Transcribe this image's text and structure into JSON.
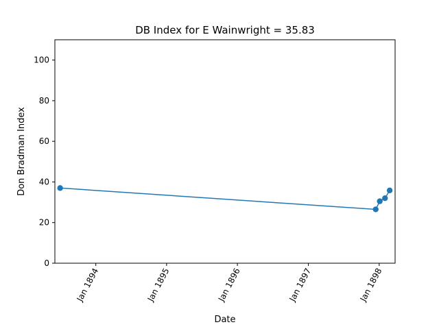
{
  "chart_data": {
    "type": "line",
    "title": "DB Index for E Wainwright = 35.83",
    "xlabel": "Date",
    "ylabel": "Don Bradman Index",
    "ylim": [
      0,
      110
    ],
    "xlim": [
      "1893-06-04",
      "1898-03-24"
    ],
    "x_ticks": [
      {
        "date": "1894-01-01",
        "label": "Jan 1894"
      },
      {
        "date": "1895-01-01",
        "label": "Jan 1895"
      },
      {
        "date": "1896-01-01",
        "label": "Jan 1896"
      },
      {
        "date": "1897-01-01",
        "label": "Jan 1897"
      },
      {
        "date": "1898-01-01",
        "label": "Jan 1898"
      }
    ],
    "y_ticks": [
      0,
      20,
      40,
      60,
      80,
      100
    ],
    "grid": false,
    "series": [
      {
        "color": "#1f77b4",
        "marker": "circle",
        "points": [
          {
            "x": "1893-07-01",
            "y": 37.0
          },
          {
            "x": "1897-12-14",
            "y": 26.5
          },
          {
            "x": "1898-01-04",
            "y": 30.5
          },
          {
            "x": "1898-01-31",
            "y": 32.0
          },
          {
            "x": "1898-02-24",
            "y": 35.83
          }
        ]
      }
    ]
  }
}
